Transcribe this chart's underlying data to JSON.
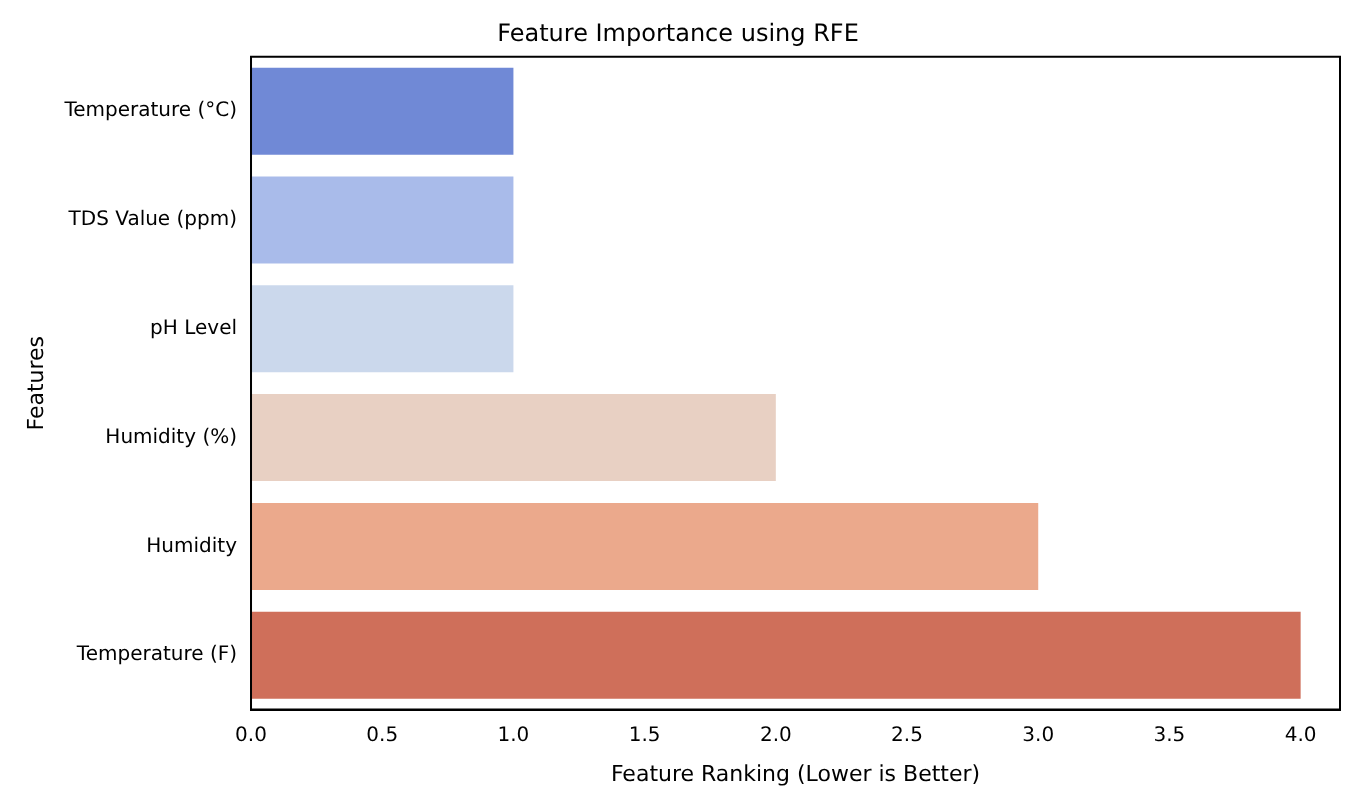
{
  "chart_data": {
    "type": "bar",
    "orientation": "horizontal",
    "title": "Feature Importance using RFE",
    "xlabel": "Feature Ranking (Lower is Better)",
    "ylabel": "Features",
    "categories": [
      "Temperature (°C)",
      "TDS Value (ppm)",
      "pH Level",
      "Humidity (%)",
      "Humidity",
      "Temperature (F)"
    ],
    "values": [
      1,
      1,
      1,
      2,
      3,
      4
    ],
    "colors": [
      "#7089d6",
      "#a9bbea",
      "#cbd8ec",
      "#e8d0c3",
      "#eba98c",
      "#cf6f5a"
    ],
    "xlim": [
      0,
      4.15
    ],
    "xticks": [
      {
        "value": 0,
        "label": "0.0"
      },
      {
        "value": 0.5,
        "label": "0.5"
      },
      {
        "value": 1,
        "label": "1.0"
      },
      {
        "value": 1.5,
        "label": "1.5"
      },
      {
        "value": 2,
        "label": "2.0"
      },
      {
        "value": 2.5,
        "label": "2.5"
      },
      {
        "value": 3,
        "label": "3.0"
      },
      {
        "value": 3.5,
        "label": "3.5"
      },
      {
        "value": 4,
        "label": "4.0"
      }
    ],
    "grid": false,
    "legend": false
  }
}
